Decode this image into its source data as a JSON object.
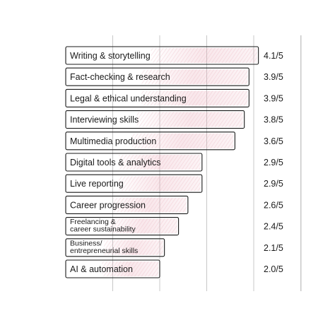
{
  "chart_data": {
    "type": "bar",
    "orientation": "horizontal",
    "categories": [
      "Writing & storytelling",
      "Fact-checking & research",
      "Legal & ethical understanding",
      "Interviewing skills",
      "Multimedia production",
      "Digital tools & analytics",
      "Live reporting",
      "Career progression",
      "Freelancing & career sustainability",
      "Business/ entrepreneurial skills",
      "AI & automation"
    ],
    "category_lines": [
      [
        "Writing & storytelling"
      ],
      [
        "Fact-checking & research"
      ],
      [
        "Legal & ethical understanding"
      ],
      [
        "Interviewing skills"
      ],
      [
        "Multimedia production"
      ],
      [
        "Digital tools & analytics"
      ],
      [
        "Live reporting"
      ],
      [
        "Career progression"
      ],
      [
        "Freelancing &",
        "career sustainability"
      ],
      [
        "Business/",
        "entrepreneurial skills"
      ],
      [
        "AI & automation"
      ]
    ],
    "values": [
      4.1,
      3.9,
      3.9,
      3.8,
      3.6,
      2.9,
      2.9,
      2.6,
      2.4,
      2.1,
      2.0
    ],
    "value_labels": [
      "4.1/5",
      "3.9/5",
      "3.9/5",
      "3.8/5",
      "3.6/5",
      "2.9/5",
      "2.9/5",
      "2.6/5",
      "2.4/5",
      "2.1/5",
      "2.0/5"
    ],
    "xlim": [
      0,
      5
    ],
    "grid": true,
    "colors": {
      "bar_fill": "#ffffff",
      "bar_stroke": "#1a1a1a",
      "accent": "#e8a8b6",
      "grid": "#c8c8c8",
      "text": "#1a1a1a"
    }
  }
}
